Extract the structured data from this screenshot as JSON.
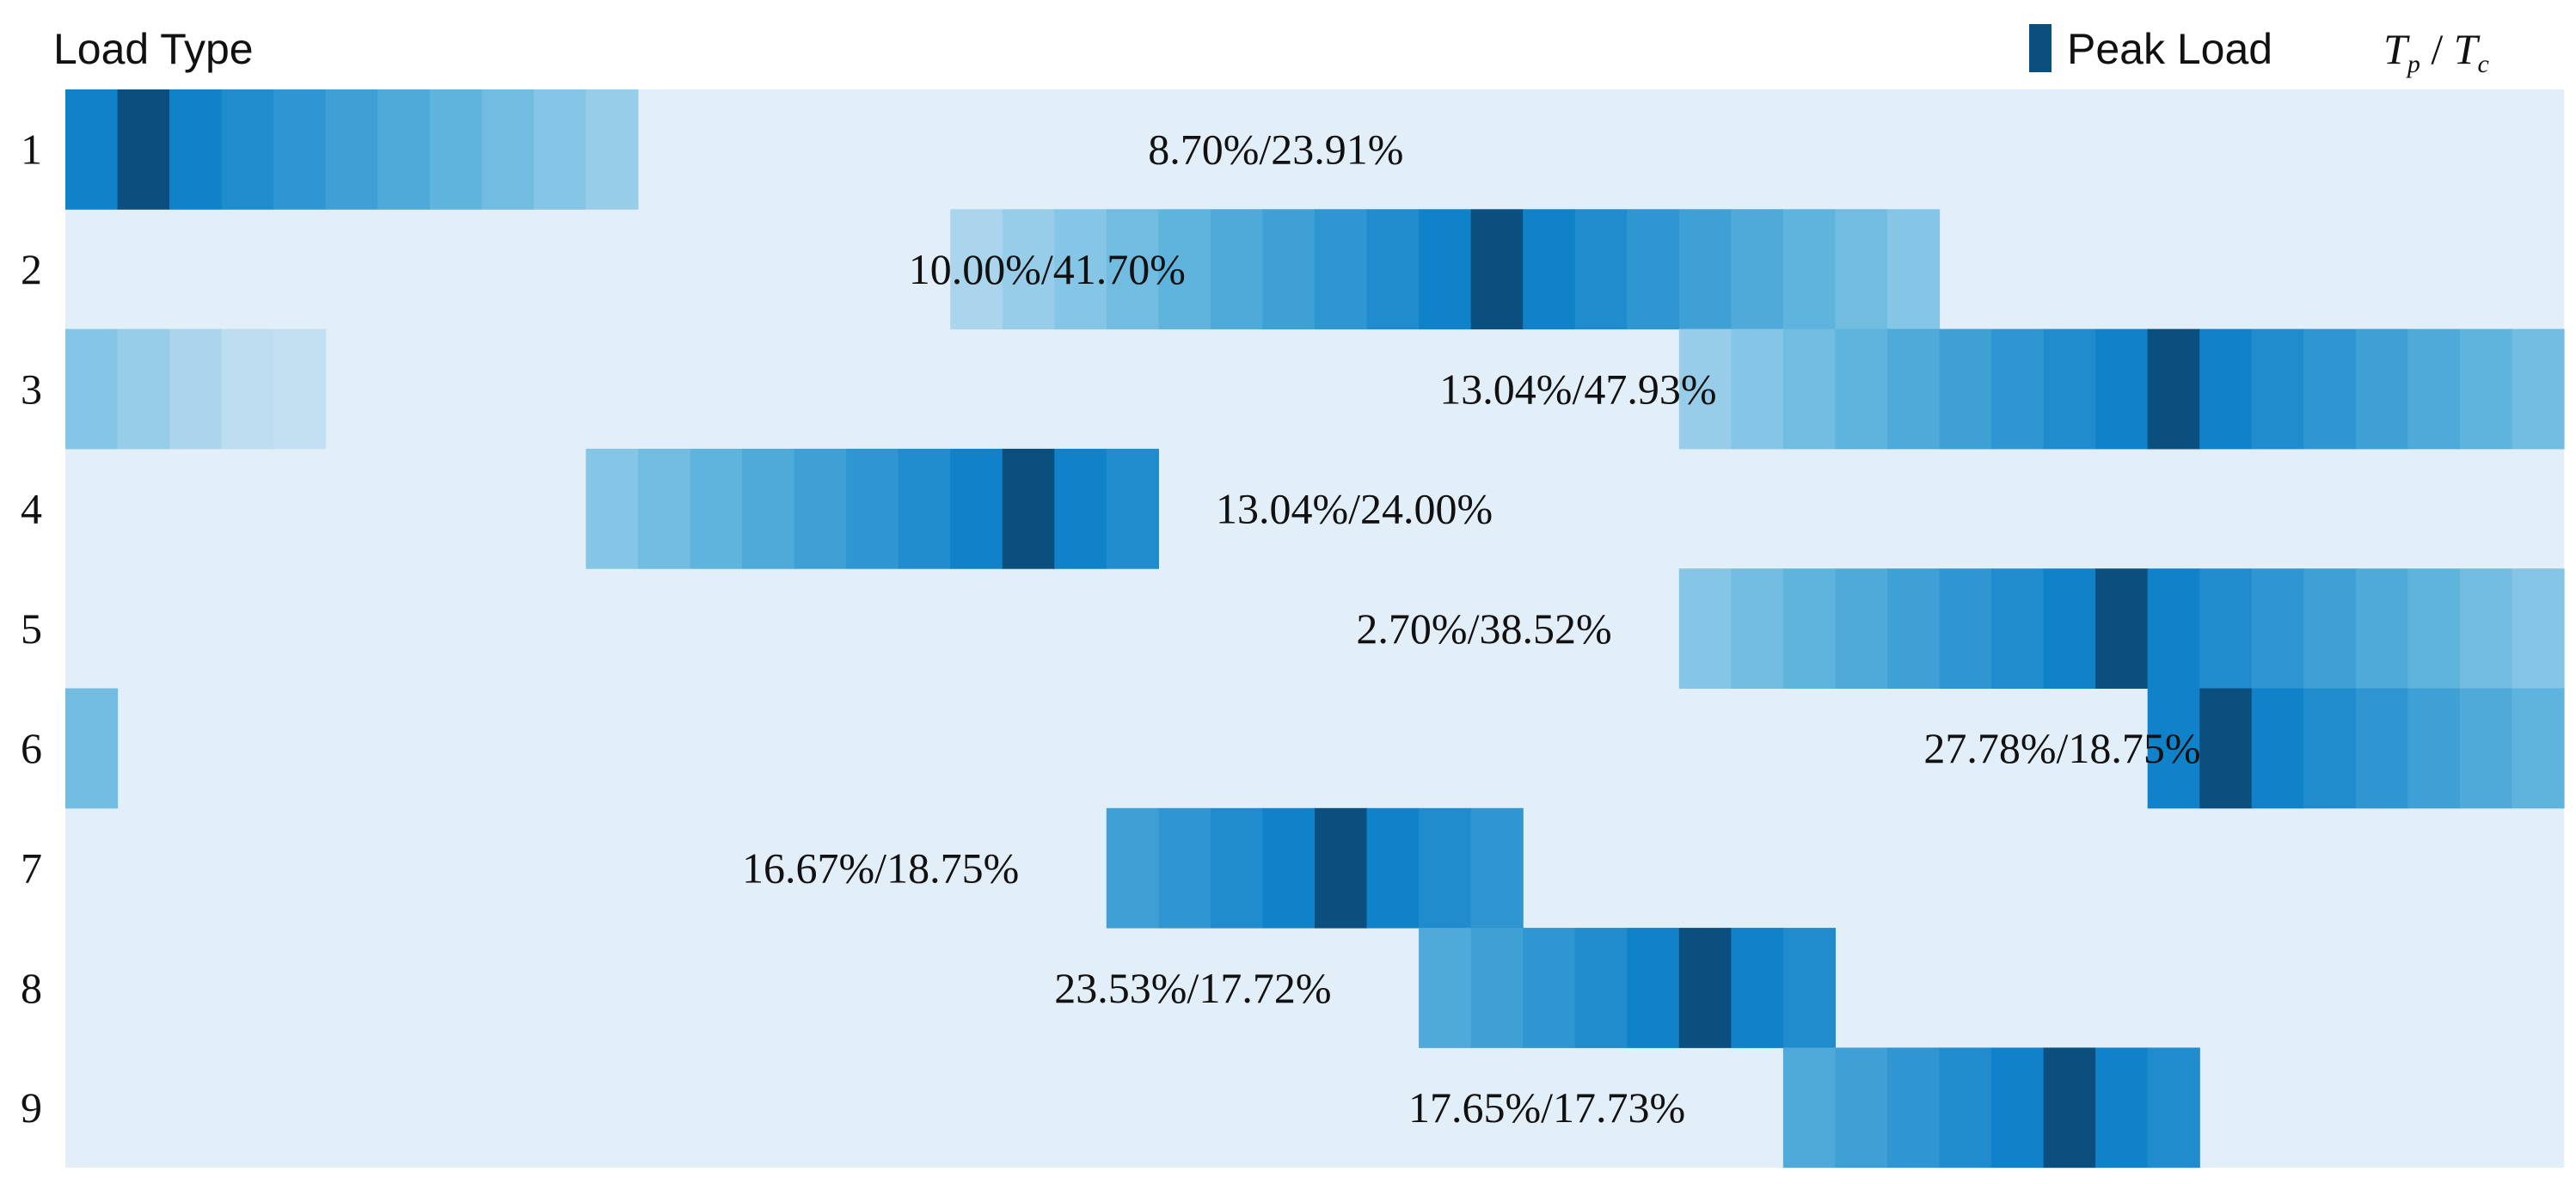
{
  "chart_data": {
    "type": "heatmap",
    "title": "",
    "ylabel": "Load Type",
    "legend": {
      "label": "Peak Load",
      "ratio_label": {
        "first": "T",
        "first_sub": "p",
        "sep": " / ",
        "second": "T",
        "second_sub": "c"
      },
      "position": "top-right"
    },
    "colors": {
      "background": "#e2eef8",
      "peak": "#0b4f7f",
      "scale_low": "#d0e6f4",
      "scale_mid": "#5fb4de",
      "scale_high": "#0078c6"
    },
    "time_axis": {
      "slots": 48,
      "range": [
        0,
        48
      ]
    },
    "rows": [
      {
        "label": "1",
        "annotation": "8.70%/23.91%",
        "annotation_at": 20.8,
        "peak": 1,
        "segments": [
          [
            0,
            11
          ]
        ]
      },
      {
        "label": "2",
        "annotation": "10.00%/41.70%",
        "annotation_at": 16.2,
        "peak": 27,
        "segments": [
          [
            17,
            36
          ]
        ]
      },
      {
        "label": "3",
        "annotation": "13.04%/47.93%",
        "annotation_at": 26.4,
        "peak": 40,
        "segments": [
          [
            0,
            5
          ],
          [
            31,
            48
          ]
        ]
      },
      {
        "label": "4",
        "annotation": "13.04%/24.00%",
        "annotation_at": 22.1,
        "peak": 18,
        "segments": [
          [
            10,
            21
          ]
        ]
      },
      {
        "label": "5",
        "annotation": "2.70%/38.52%",
        "annotation_at": 24.8,
        "peak": 39,
        "segments": [
          [
            31,
            48
          ]
        ]
      },
      {
        "label": "6",
        "annotation": "27.78%/18.75%",
        "annotation_at": 35.7,
        "peak": 41,
        "segments": [
          [
            0,
            1
          ],
          [
            40,
            48
          ]
        ]
      },
      {
        "label": "7",
        "annotation": "16.67%/18.75%",
        "annotation_at": 13.0,
        "peak": 24,
        "segments": [
          [
            20,
            28
          ]
        ]
      },
      {
        "label": "8",
        "annotation": "23.53%/17.72%",
        "annotation_at": 19.0,
        "peak": 31,
        "segments": [
          [
            26,
            34
          ]
        ]
      },
      {
        "label": "9",
        "annotation": "17.65%/17.73%",
        "annotation_at": 25.8,
        "peak": 38,
        "segments": [
          [
            33,
            41
          ]
        ]
      }
    ]
  }
}
